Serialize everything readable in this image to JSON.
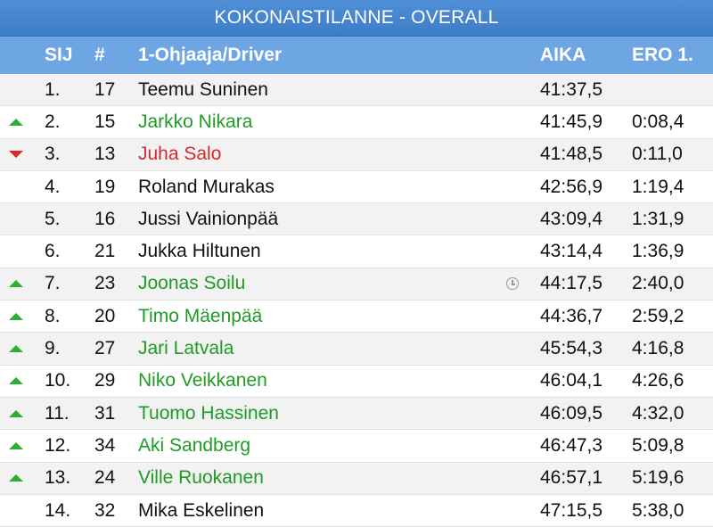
{
  "title": "KOKONAISTILANNE - OVERALL",
  "headers": {
    "pos": "SIJ",
    "num": "#",
    "name": "1-Ohjaaja/Driver",
    "time": "AIKA",
    "diff": "ERO 1."
  },
  "colors": {
    "title_bg": "#3e7dc7",
    "header_bg": "#6ea6e4",
    "up": "#1f9b26",
    "down": "#d42a2a"
  },
  "rows": [
    {
      "pos": "1.",
      "num": "17",
      "name": "Teemu Suninen",
      "time": "41:37,5",
      "diff": "",
      "trend": "none",
      "flag": ""
    },
    {
      "pos": "2.",
      "num": "15",
      "name": "Jarkko Nikara",
      "time": "41:45,9",
      "diff": "0:08,4",
      "trend": "up",
      "flag": ""
    },
    {
      "pos": "3.",
      "num": "13",
      "name": "Juha Salo",
      "time": "41:48,5",
      "diff": "0:11,0",
      "trend": "down",
      "flag": ""
    },
    {
      "pos": "4.",
      "num": "19",
      "name": "Roland Murakas",
      "time": "42:56,9",
      "diff": "1:19,4",
      "trend": "none",
      "flag": ""
    },
    {
      "pos": "5.",
      "num": "16",
      "name": "Jussi Vainionpää",
      "time": "43:09,4",
      "diff": "1:31,9",
      "trend": "none",
      "flag": ""
    },
    {
      "pos": "6.",
      "num": "21",
      "name": "Jukka Hiltunen",
      "time": "43:14,4",
      "diff": "1:36,9",
      "trend": "none",
      "flag": ""
    },
    {
      "pos": "7.",
      "num": "23",
      "name": "Joonas Soilu",
      "time": "44:17,5",
      "diff": "2:40,0",
      "trend": "up",
      "flag": "clock-icon"
    },
    {
      "pos": "8.",
      "num": "20",
      "name": "Timo Mäenpää",
      "time": "44:36,7",
      "diff": "2:59,2",
      "trend": "up",
      "flag": ""
    },
    {
      "pos": "9.",
      "num": "27",
      "name": "Jari Latvala",
      "time": "45:54,3",
      "diff": "4:16,8",
      "trend": "up",
      "flag": ""
    },
    {
      "pos": "10.",
      "num": "29",
      "name": "Niko Veikkanen",
      "time": "46:04,1",
      "diff": "4:26,6",
      "trend": "up",
      "flag": ""
    },
    {
      "pos": "11.",
      "num": "31",
      "name": "Tuomo Hassinen",
      "time": "46:09,5",
      "diff": "4:32,0",
      "trend": "up",
      "flag": ""
    },
    {
      "pos": "12.",
      "num": "34",
      "name": "Aki Sandberg",
      "time": "46:47,3",
      "diff": "5:09,8",
      "trend": "up",
      "flag": ""
    },
    {
      "pos": "13.",
      "num": "24",
      "name": "Ville Ruokanen",
      "time": "46:57,1",
      "diff": "5:19,6",
      "trend": "up",
      "flag": ""
    },
    {
      "pos": "14.",
      "num": "32",
      "name": "Mika Eskelinen",
      "time": "47:15,5",
      "diff": "5:38,0",
      "trend": "none",
      "flag": ""
    }
  ]
}
